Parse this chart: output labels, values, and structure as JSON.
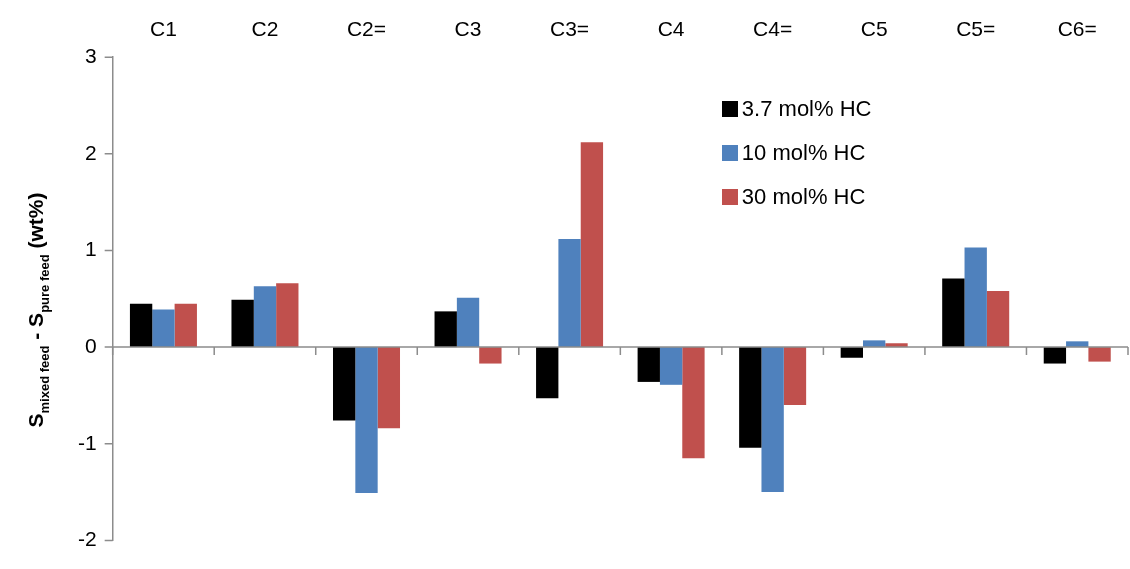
{
  "chart_data": {
    "type": "bar",
    "ylabel": "S$_{mixed feed}$ - S$_{pure feed}$  (wt%)",
    "categories": [
      "C1",
      "C2",
      "C2=",
      "C3",
      "C3=",
      "C4",
      "C4=",
      "C5",
      "C5=",
      "C6="
    ],
    "series": [
      {
        "name": "3.7 mol% HC",
        "color": "#000000",
        "values": [
          0.45,
          0.49,
          -0.76,
          0.37,
          -0.53,
          -0.36,
          -1.04,
          -0.11,
          0.71,
          -0.17
        ]
      },
      {
        "name": "10 mol% HC",
        "color": "#4f81bd",
        "values": [
          0.39,
          0.63,
          -1.51,
          0.51,
          1.12,
          -0.39,
          -1.5,
          0.07,
          1.03,
          0.06
        ]
      },
      {
        "name": "30 mol% HC",
        "color": "#c0504d",
        "values": [
          0.45,
          0.66,
          -0.84,
          -0.17,
          2.12,
          -1.15,
          -0.6,
          0.04,
          0.58,
          -0.15
        ]
      }
    ],
    "ylim": [
      -2,
      3
    ],
    "yticks": [
      -2,
      -1,
      0,
      1,
      2,
      3
    ],
    "legend": "top right"
  }
}
